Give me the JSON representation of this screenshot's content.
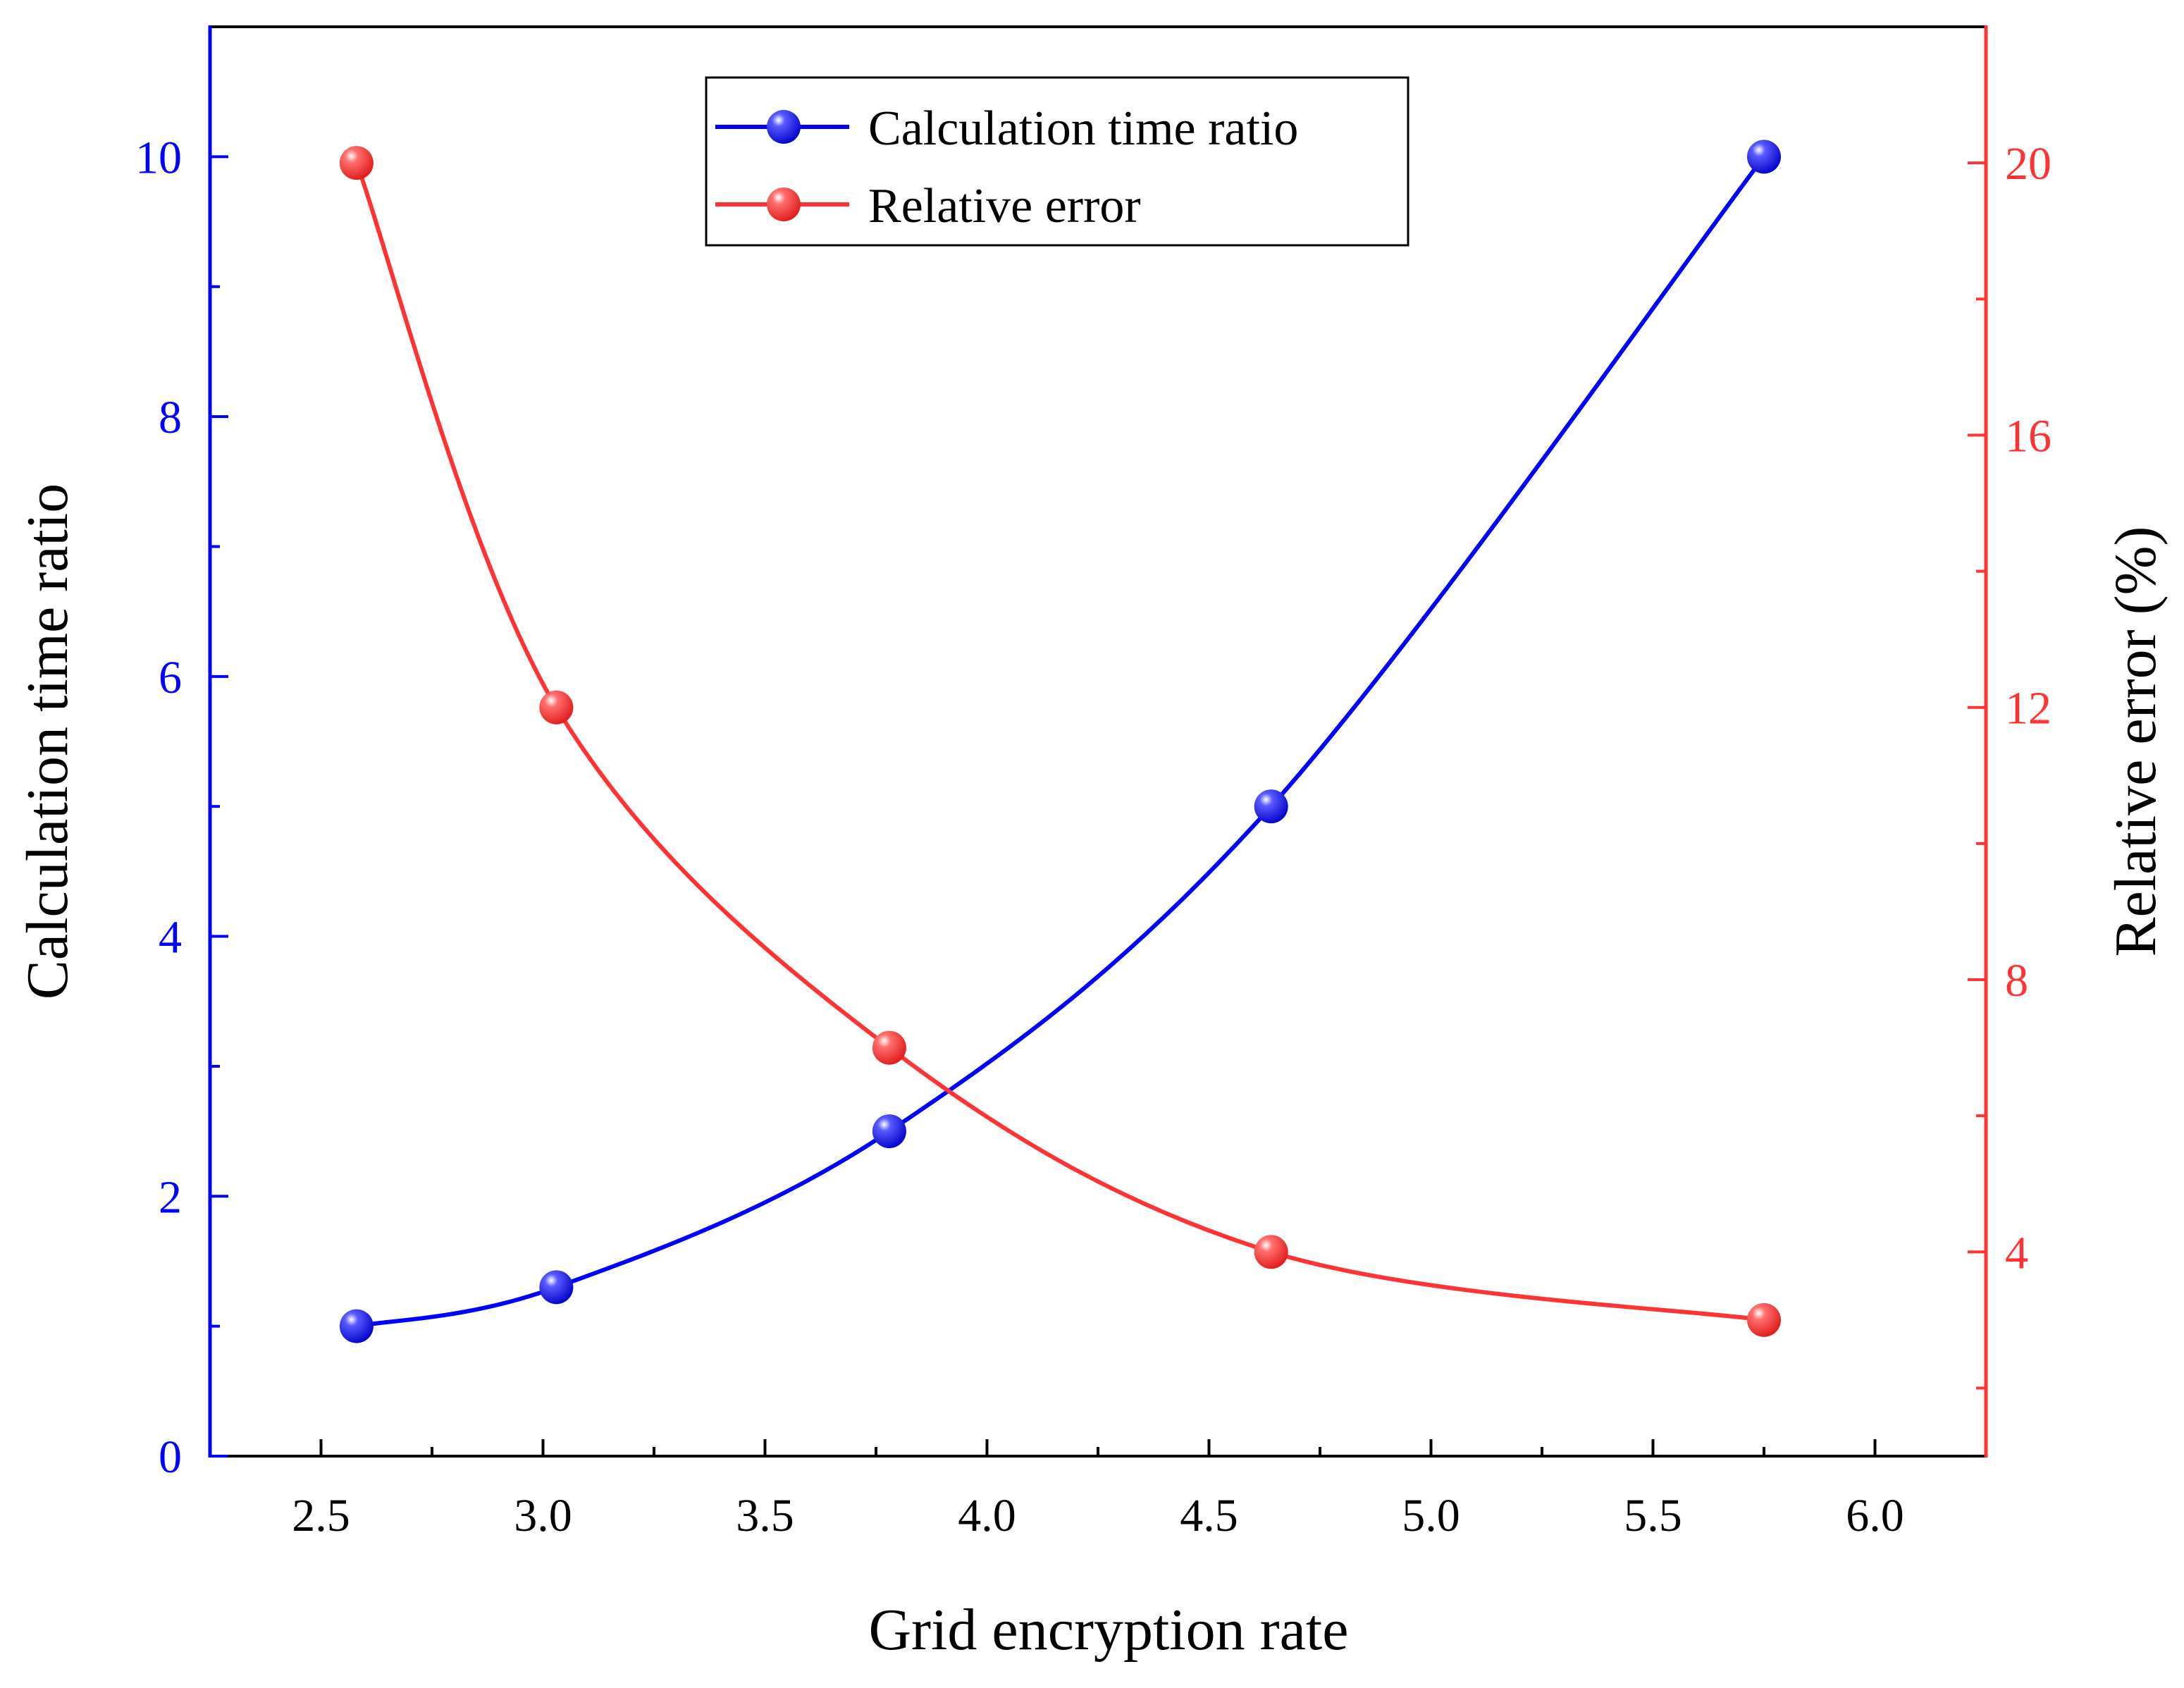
{
  "chart_data": {
    "type": "line",
    "xlabel": "Grid encryption rate",
    "ylabel_left": "Calculation time ratio",
    "ylabel_right": "Relative error (%)",
    "xlim": [
      2.25,
      6.25
    ],
    "ylim_left": [
      0,
      11
    ],
    "ylim_right": [
      1,
      22
    ],
    "x_ticks": [
      "2.5",
      "3.0",
      "3.5",
      "4.0",
      "4.5",
      "5.0",
      "5.5",
      "6.0"
    ],
    "y_left_ticks": [
      "0",
      "2",
      "4",
      "6",
      "8",
      "10"
    ],
    "y_right_ticks": [
      "4",
      "8",
      "12",
      "16",
      "20"
    ],
    "legend_position": "top-center",
    "series": [
      {
        "name": "Calculation time ratio",
        "axis": "left",
        "color": "#0000ff",
        "x": [
          2.58,
          3.03,
          3.78,
          4.64,
          5.75
        ],
        "y": [
          1.0,
          1.3,
          2.5,
          5.0,
          10.0
        ]
      },
      {
        "name": "Relative error",
        "axis": "right",
        "color": "#ff3333",
        "x": [
          2.58,
          3.03,
          3.78,
          4.64,
          5.75
        ],
        "y": [
          20.0,
          12.0,
          7.0,
          4.0,
          3.0
        ]
      }
    ]
  }
}
